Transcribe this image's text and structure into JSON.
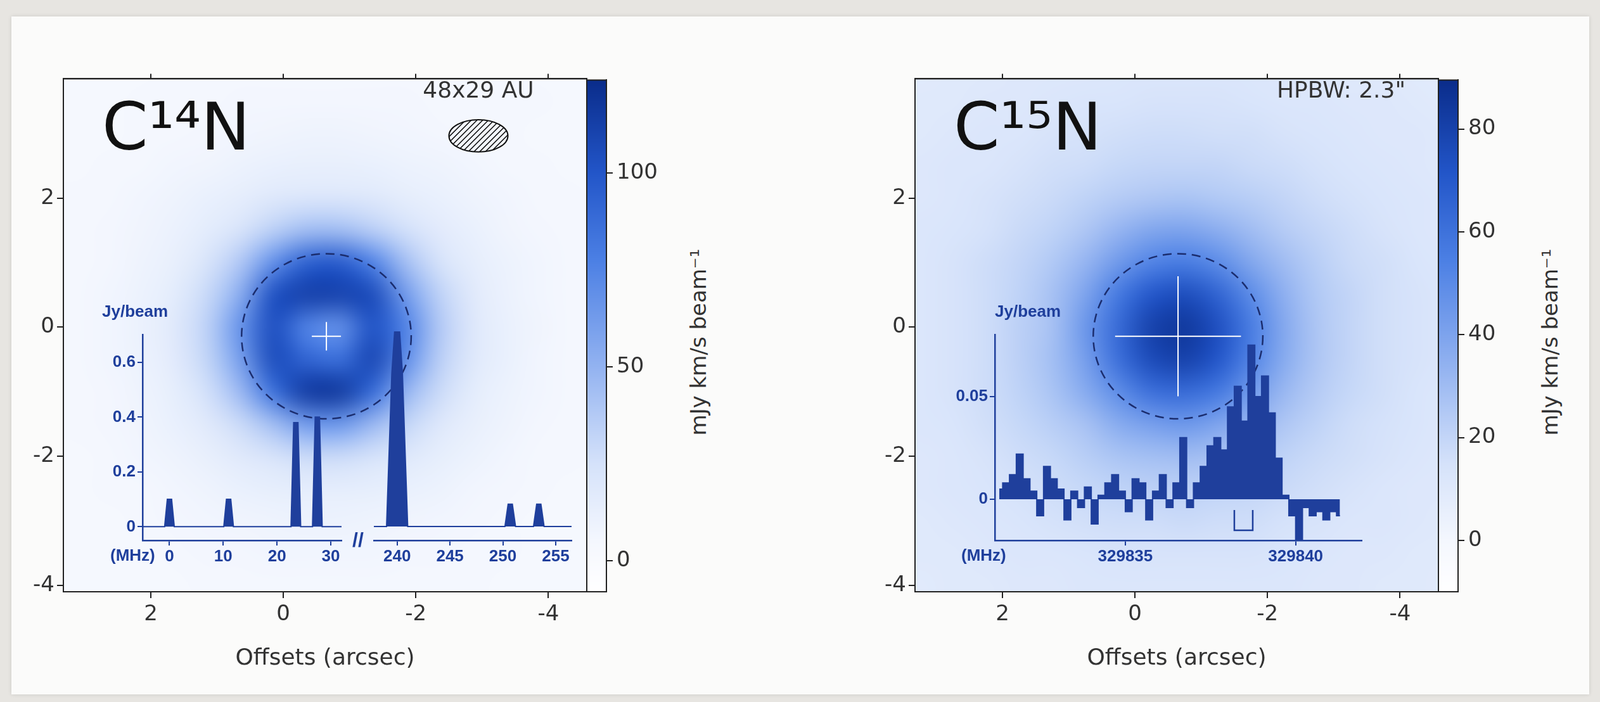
{
  "chart_data": [
    {
      "type": "heatmap",
      "title": "C¹⁴N",
      "annotation": "48x29 AU",
      "beam": {
        "major": 0.89,
        "minor": 0.5
      },
      "xlabel": "Offsets (arcsec)",
      "xlim": [
        3.32,
        -4.58
      ],
      "xticks": [
        2,
        0,
        -2,
        -4
      ],
      "ylim": [
        -4.1,
        3.85
      ],
      "yticks": [
        -4,
        -2,
        0,
        2
      ],
      "x": [
        3.15,
        2.65,
        2.15,
        1.65,
        1.15,
        0.65,
        0.15,
        -0.35,
        -0.85,
        -1.35,
        -1.85,
        -2.35,
        -2.85,
        -3.35,
        -3.85,
        -4.35,
        -4.85
      ],
      "y": [
        4,
        3.5,
        3,
        2.5,
        2,
        1.5,
        1,
        0.5,
        0,
        -0.5,
        -1,
        -1.5,
        -2,
        -2.5,
        -3,
        -3.5,
        -4
      ],
      "z": [
        [
          4,
          4,
          4,
          5,
          5,
          5,
          5,
          5,
          5,
          5,
          5,
          5,
          5,
          5,
          4,
          4,
          4
        ],
        [
          4,
          4,
          5,
          5,
          5,
          6,
          6,
          6,
          6,
          6,
          6,
          5,
          5,
          5,
          5,
          4,
          4
        ],
        [
          4,
          4,
          5,
          5,
          6,
          7,
          8,
          9,
          9,
          8,
          7,
          6,
          5,
          5,
          4,
          4,
          4
        ],
        [
          4,
          5,
          5,
          7,
          8,
          10,
          12,
          13,
          13,
          12,
          10,
          9,
          7,
          5,
          5,
          4,
          4
        ],
        [
          5,
          5,
          7,
          9,
          12,
          15,
          19,
          21,
          21,
          19,
          15,
          12,
          9,
          7,
          5,
          5,
          4
        ],
        [
          5,
          6,
          8,
          11,
          16,
          24,
          35,
          45,
          45,
          36,
          26,
          17,
          12,
          8,
          6,
          5,
          4
        ],
        [
          5,
          6,
          9,
          13,
          23,
          39,
          69,
          94,
          97,
          76,
          44,
          25,
          15,
          10,
          7,
          5,
          4
        ],
        [
          5,
          7,
          10,
          16,
          30,
          54,
          102,
          111,
          110,
          105,
          63,
          34,
          18,
          11,
          7,
          5,
          4
        ],
        [
          5,
          7,
          11,
          18,
          34,
          67,
          103,
          76,
          69,
          101,
          76,
          39,
          20,
          12,
          8,
          5,
          4
        ],
        [
          5,
          7,
          10,
          17,
          32,
          61,
          104,
          92,
          87,
          107,
          70,
          36,
          19,
          12,
          7,
          5,
          4
        ],
        [
          5,
          6,
          9,
          14,
          26,
          47,
          85,
          114,
          115,
          88,
          50,
          29,
          16,
          10,
          7,
          5,
          4
        ],
        [
          5,
          6,
          8,
          12,
          18,
          29,
          45,
          63,
          65,
          48,
          32,
          20,
          13,
          9,
          6,
          5,
          4
        ],
        [
          4,
          5,
          7,
          9,
          13,
          18,
          24,
          29,
          29,
          25,
          19,
          14,
          10,
          7,
          5,
          5,
          4
        ],
        [
          4,
          5,
          5,
          7,
          9,
          12,
          14,
          15,
          15,
          14,
          12,
          10,
          7,
          6,
          5,
          4,
          4
        ],
        [
          4,
          4,
          5,
          6,
          7,
          8,
          9,
          10,
          10,
          9,
          8,
          7,
          6,
          5,
          4,
          4,
          4
        ],
        [
          4,
          4,
          4,
          5,
          6,
          6,
          7,
          7,
          7,
          7,
          6,
          6,
          5,
          5,
          4,
          4,
          4
        ],
        [
          4,
          4,
          4,
          4,
          5,
          5,
          5,
          5,
          5,
          5,
          5,
          5,
          5,
          4,
          4,
          4,
          4
        ]
      ],
      "colorbar": {
        "label": "mJy km/s beam⁻¹",
        "lim": [
          -8,
          124
        ],
        "ticks": [
          0,
          50,
          100
        ]
      },
      "circle": {
        "x": -0.65,
        "y": -0.14,
        "r": 1.28
      },
      "cross": {
        "x": -0.65,
        "y": -0.14,
        "dx": 0.22,
        "dy": 0.22
      },
      "inset": {
        "type": "line",
        "line_style": "solid",
        "color": "#1f3f9c",
        "ylabel": "Jy/beam",
        "xlabel": "(MHz)",
        "break_mark": "//",
        "ylim": [
          -0.05,
          0.7
        ],
        "yticks": [
          0,
          0.2,
          0.4,
          0.6
        ],
        "segments": [
          {
            "xlim": [
              -5,
              32
            ],
            "xticks": [
              0,
              10,
              20,
              30
            ],
            "x": [
              -5,
              -0.9,
              -0.4,
              0.4,
              0.9,
              10.1,
              10.6,
              11.4,
              11.9,
              22.6,
              23.1,
              23.9,
              24.4,
              26.6,
              27.1,
              27.9,
              28.4,
              32
            ],
            "values": [
              0,
              0,
              0.1,
              0.1,
              0,
              0,
              0.1,
              0.1,
              0,
              0,
              0.38,
              0.38,
              0,
              0,
              0.4,
              0.4,
              0,
              0
            ]
          },
          {
            "xlim": [
              237.8,
              256.5
            ],
            "xticks": [
              240,
              245,
              250,
              255
            ],
            "x": [
              237.8,
              239.0,
              239.5,
              239.8,
              240.2,
              240.5,
              241.0,
              250.2,
              250.5,
              250.9,
              251.2,
              252.9,
              253.2,
              253.6,
              253.9,
              256.5
            ],
            "values": [
              0,
              0,
              0.55,
              0.72,
              0.72,
              0.55,
              0,
              0,
              0.08,
              0.08,
              0,
              0,
              0.08,
              0.08,
              0,
              0
            ]
          }
        ]
      }
    },
    {
      "type": "heatmap",
      "title": "C¹⁵N",
      "annotation": "HPBW: 2.3\"",
      "xlabel": "Offsets (arcsec)",
      "xlim": [
        3.32,
        -4.58
      ],
      "xticks": [
        2,
        0,
        -2,
        -4
      ],
      "ylim": [
        -4.1,
        3.85
      ],
      "yticks": [
        -4,
        -2,
        0,
        2
      ],
      "x": [
        3.25,
        2.75,
        2.25,
        1.75,
        1.25,
        0.75,
        0.25,
        -0.25,
        -0.75,
        -1.25,
        -1.75,
        -2.25,
        -2.75,
        -3.25,
        -3.75,
        -4.25,
        -4.75
      ],
      "y": [
        4,
        3.5,
        3,
        2.5,
        2,
        1.5,
        1,
        0.5,
        0,
        -0.5,
        -1,
        -1.5,
        -2,
        -2.5,
        -3,
        -3.5,
        -4
      ],
      "z": [
        [
          9,
          10,
          10,
          11,
          11,
          11,
          12,
          12,
          12,
          12,
          12,
          11,
          11,
          10,
          10,
          9,
          9
        ],
        [
          10,
          10,
          11,
          11,
          12,
          13,
          13,
          14,
          14,
          14,
          13,
          12,
          12,
          11,
          11,
          10,
          9
        ],
        [
          10,
          11,
          12,
          12,
          14,
          15,
          16,
          17,
          17,
          16,
          16,
          14,
          13,
          12,
          11,
          11,
          10
        ],
        [
          11,
          12,
          12,
          14,
          16,
          17,
          19,
          20,
          20,
          20,
          18,
          17,
          15,
          13,
          12,
          11,
          10
        ],
        [
          11,
          12,
          14,
          16,
          18,
          21,
          24,
          26,
          27,
          25,
          23,
          20,
          17,
          15,
          13,
          12,
          11
        ],
        [
          12,
          13,
          15,
          18,
          21,
          26,
          33,
          39,
          40,
          36,
          30,
          24,
          20,
          17,
          14,
          12,
          11
        ],
        [
          12,
          14,
          17,
          20,
          25,
          33,
          44,
          53,
          56,
          50,
          39,
          30,
          23,
          18,
          16,
          13,
          12
        ],
        [
          12,
          14,
          17,
          21,
          28,
          40,
          57,
          71,
          75,
          66,
          50,
          35,
          25,
          20,
          16,
          14,
          12
        ],
        [
          12,
          14,
          17,
          22,
          28,
          45,
          63,
          80,
          84,
          74,
          56,
          38,
          26,
          20,
          16,
          14,
          12
        ],
        [
          12,
          14,
          17,
          22,
          29,
          42,
          61,
          76,
          80,
          71,
          53,
          37,
          26,
          20,
          16,
          14,
          12
        ],
        [
          12,
          14,
          17,
          21,
          27,
          37,
          49,
          61,
          63,
          57,
          44,
          32,
          24,
          19,
          16,
          13,
          12
        ],
        [
          12,
          13,
          16,
          19,
          23,
          28,
          37,
          42,
          45,
          40,
          33,
          26,
          21,
          17,
          15,
          13,
          11
        ],
        [
          11,
          12,
          14,
          17,
          19,
          23,
          27,
          29,
          30,
          28,
          25,
          21,
          18,
          16,
          14,
          12,
          11
        ],
        [
          11,
          12,
          13,
          15,
          17,
          19,
          21,
          22,
          22,
          21,
          20,
          18,
          16,
          14,
          12,
          11,
          11
        ],
        [
          10,
          11,
          12,
          13,
          15,
          16,
          17,
          17,
          18,
          17,
          17,
          15,
          14,
          12,
          12,
          11,
          10
        ],
        [
          10,
          10,
          11,
          12,
          12,
          13,
          14,
          14,
          14,
          14,
          14,
          13,
          12,
          11,
          11,
          10,
          10
        ],
        [
          9,
          10,
          10,
          11,
          11,
          12,
          12,
          12,
          12,
          12,
          12,
          12,
          11,
          11,
          10,
          10,
          9
        ]
      ],
      "colorbar": {
        "label": "mJy km/s beam⁻¹",
        "lim": [
          -10,
          89.5
        ],
        "ticks": [
          0,
          20,
          40,
          60,
          80
        ]
      },
      "circle": {
        "x": -0.65,
        "y": -0.14,
        "r": 1.28
      },
      "cross": {
        "x": -0.65,
        "y": -0.14,
        "dx": 0.95,
        "dy": 0.93
      },
      "inset": {
        "type": "line",
        "line_style": "steps",
        "color": "#1f3f9c",
        "ylabel": "Jy/beam",
        "xlabel": "(MHz)",
        "ylim": [
          -0.02,
          0.08
        ],
        "yticks": [
          0,
          0.05
        ],
        "xlim": [
          329831.17,
          329841.94
        ],
        "xticks": [
          329835,
          329840
        ],
        "x": [
          329831.3,
          329831.5,
          329831.7,
          329831.9,
          329832.1,
          329832.3,
          329832.5,
          329832.7,
          329832.9,
          329833.1,
          329833.3,
          329833.5,
          329833.7,
          329833.9,
          329834.1,
          329834.3,
          329834.5,
          329834.7,
          329834.9,
          329835.1,
          329835.3,
          329835.5,
          329835.7,
          329835.9,
          329836.1,
          329836.3,
          329836.5,
          329836.7,
          329836.9,
          329837.1,
          329837.3,
          329837.5,
          329837.7,
          329837.9,
          329838.1,
          329838.3,
          329838.5,
          329838.7,
          329838.9,
          329839.1,
          329839.3,
          329839.5,
          329839.7,
          329839.9,
          329840.1,
          329840.3,
          329840.5,
          329840.7,
          329840.9,
          329841.1,
          329841.3
        ],
        "values": [
          0.005,
          0.008,
          0.012,
          0.022,
          0.01,
          0.004,
          -0.008,
          0.016,
          0.01,
          0.005,
          -0.01,
          0.004,
          -0.004,
          0.006,
          -0.012,
          0.002,
          0.008,
          0.012,
          0.004,
          -0.006,
          0.01,
          0.008,
          -0.01,
          0.004,
          0.012,
          -0.004,
          0.008,
          0.03,
          -0.004,
          0.008,
          0.016,
          0.026,
          0.03,
          0.024,
          0.045,
          0.055,
          0.038,
          0.075,
          0.05,
          0.06,
          0.042,
          0.02,
          0.002,
          -0.008,
          -0.02,
          -0.004,
          -0.008,
          -0.006,
          -0.01,
          -0.006,
          -0.008
        ],
        "bracket": [
          329838.2,
          329838.74
        ]
      }
    }
  ]
}
